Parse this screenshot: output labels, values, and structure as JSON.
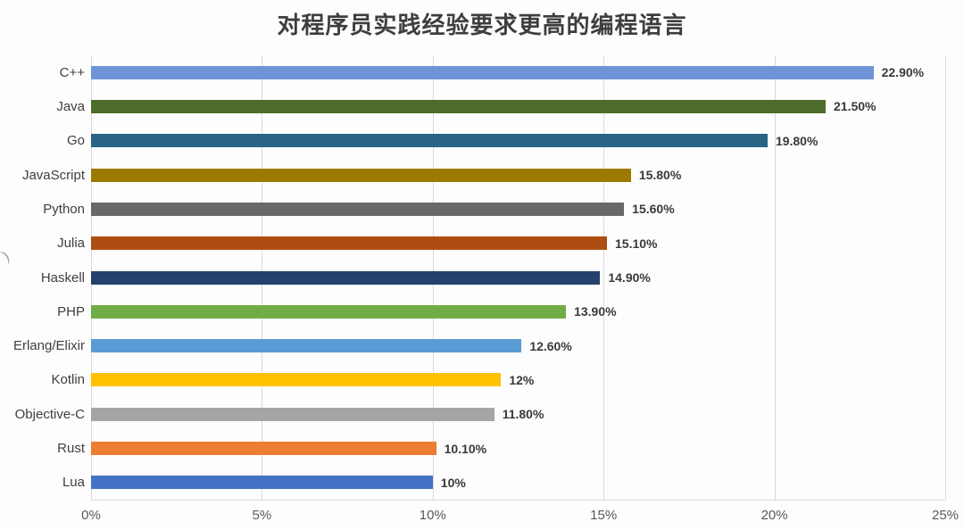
{
  "title": "对程序员实践经验要求更高的编程语言",
  "chart_data": {
    "type": "bar",
    "orientation": "horizontal",
    "title": "对程序员实践经验要求更高的编程语言",
    "categories": [
      "C++",
      "Java",
      "Go",
      "JavaScript",
      "Python",
      "Julia",
      "Haskell",
      "PHP",
      "Erlang/Elixir",
      "Kotlin",
      "Objective-C",
      "Rust",
      "Lua"
    ],
    "values": [
      22.9,
      21.5,
      19.8,
      15.8,
      15.6,
      15.1,
      14.9,
      13.9,
      12.6,
      12,
      11.8,
      10.1,
      10
    ],
    "value_labels": [
      "22.90%",
      "21.50%",
      "19.80%",
      "15.80%",
      "15.60%",
      "15.10%",
      "14.90%",
      "13.90%",
      "12.60%",
      "12%",
      "11.80%",
      "10.10%",
      "10%"
    ],
    "bar_colors": [
      "#6E94D8",
      "#4E6C2B",
      "#2A6485",
      "#9C7A00",
      "#686868",
      "#AE4D11",
      "#24416B",
      "#70AD47",
      "#5B9BD5",
      "#FFC000",
      "#A5A5A5",
      "#ED7D31",
      "#4472C4"
    ],
    "xlabel": "",
    "ylabel": "",
    "xlim": [
      0,
      25
    ],
    "xticks": [
      "0%",
      "5%",
      "10%",
      "15%",
      "20%",
      "25%"
    ],
    "xtick_values": [
      0,
      5,
      10,
      15,
      20,
      25
    ],
    "grid": true,
    "gridline_color": "#d9d9d9",
    "legend": false
  }
}
